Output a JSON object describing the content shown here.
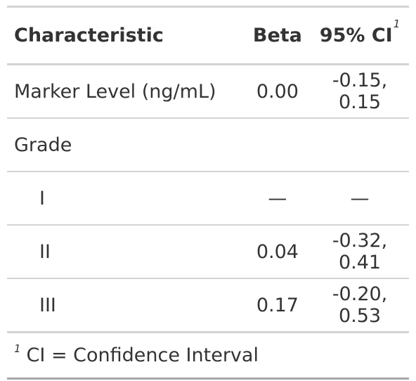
{
  "table": {
    "headers": {
      "characteristic": "Characteristic",
      "beta": "Beta",
      "ci": "95% CI",
      "ci_footnote_mark": "1"
    },
    "rows": [
      {
        "label": "Marker Level (ng/mL)",
        "beta": "0.00",
        "ci": "-0.15, 0.15"
      },
      {
        "label": "Grade",
        "beta": "",
        "ci": ""
      },
      {
        "label": "I",
        "beta": "—",
        "ci": "—"
      },
      {
        "label": "II",
        "beta": "0.04",
        "ci": "-0.32, 0.41"
      },
      {
        "label": "III",
        "beta": "0.17",
        "ci": "-0.20, 0.53"
      }
    ]
  },
  "footnote": {
    "mark": "1",
    "text": "CI = Confidence Interval"
  }
}
